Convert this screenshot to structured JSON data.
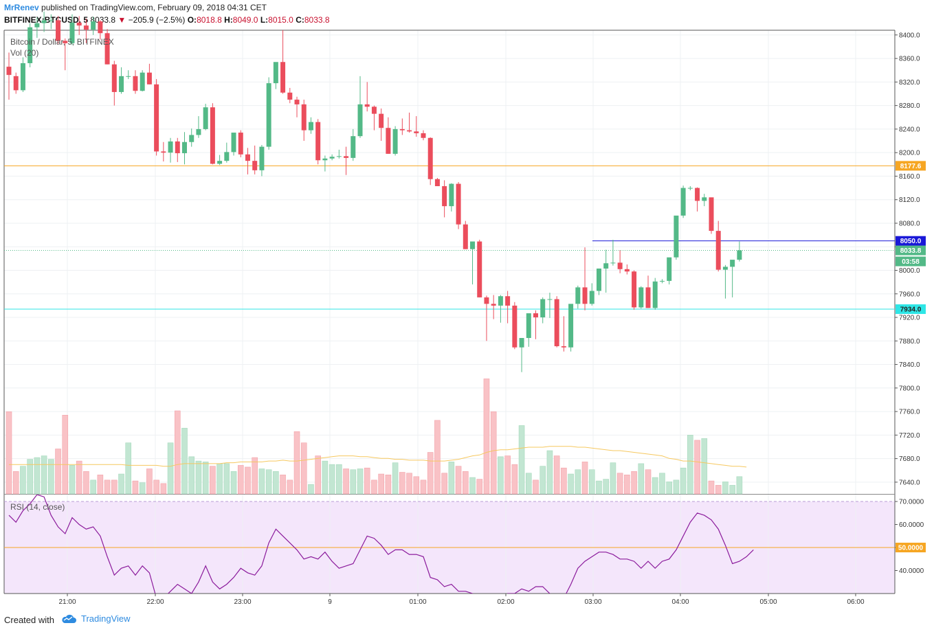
{
  "header": {
    "author": "MrRenev",
    "published_text": "published on TradingView.com, February 09, 2018 04:31 CET",
    "symbol": "BITFINEX:BTCUSD, 5",
    "last": "8033.8",
    "change": "−205.9 (−2.5%)",
    "o_label": "O:",
    "o_value": "8018.8",
    "h_label": "H:",
    "h_value": "8049.0",
    "l_label": "L:",
    "l_value": "8015.0",
    "c_label": "C:",
    "c_value": "8033.8"
  },
  "footer": {
    "created_with": "Created with",
    "brand": "TradingView"
  },
  "colors": {
    "up": "#53b987",
    "down": "#eb4d5c",
    "vol_up": "#c2e6d2",
    "vol_down": "#f9c2c6",
    "level_orange": "#f6a623",
    "level_blue": "#1a18d8",
    "level_cyan": "#2ee6e6",
    "rsi_line": "#8b1b9c",
    "rsi_fill": "#f4e6fb",
    "vol_ma": "#f6c85f"
  },
  "chart_data": {
    "type": "candlestick",
    "title": "Bitcoin / Dollar, 5, BITFINEX",
    "volume_label": "Vol (20)",
    "rsi_label": "RSI (14, close)",
    "x_ticks": [
      "21:00",
      "22:00",
      "23:00",
      "9",
      "01:00",
      "02:00",
      "03:00",
      "04:00",
      "05:00",
      "06:00"
    ],
    "y_ticks": [
      "8400.0",
      "8360.0",
      "8320.0",
      "8280.0",
      "8240.0",
      "8200.0",
      "8160.0",
      "8120.0",
      "8080.0",
      "8040.0",
      "8000.0",
      "7960.0",
      "7920.0",
      "7880.0",
      "7840.0",
      "7800.0",
      "7760.0",
      "7720.0",
      "7680.0",
      "7640.0"
    ],
    "ylim": [
      7620,
      8408
    ],
    "rsi_ticks": [
      "70.0000",
      "60.0000",
      "50.0000",
      "40.0000"
    ],
    "rsi_ylim": [
      30,
      73
    ],
    "levels": [
      {
        "label": "8177.6",
        "value": 8177.6,
        "color": "#f6a623"
      },
      {
        "label": "8050.0",
        "value": 8050.0,
        "color": "#1a18d8"
      },
      {
        "label": "7934.0",
        "value": 7934.0,
        "color": "#2ee6e6"
      }
    ],
    "last_price_label": "8033.8",
    "countdown_label": "03:58",
    "rsi_level_label": "50.0000",
    "candles": [
      {
        "o": 8346,
        "h": 8370,
        "l": 8290,
        "c": 8332
      },
      {
        "o": 8330,
        "h": 8336,
        "l": 8300,
        "c": 8306
      },
      {
        "o": 8306,
        "h": 8362,
        "l": 8303,
        "c": 8352
      },
      {
        "o": 8352,
        "h": 8420,
        "l": 8345,
        "c": 8413
      },
      {
        "o": 8413,
        "h": 8430,
        "l": 8395,
        "c": 8420
      },
      {
        "o": 8420,
        "h": 8440,
        "l": 8405,
        "c": 8425
      },
      {
        "o": 8425,
        "h": 8435,
        "l": 8410,
        "c": 8425
      },
      {
        "o": 8425,
        "h": 8432,
        "l": 8385,
        "c": 8390
      },
      {
        "o": 8390,
        "h": 8394,
        "l": 8340,
        "c": 8386
      },
      {
        "o": 8386,
        "h": 8435,
        "l": 8383,
        "c": 8421
      },
      {
        "o": 8421,
        "h": 8432,
        "l": 8400,
        "c": 8416
      },
      {
        "o": 8416,
        "h": 8428,
        "l": 8386,
        "c": 8409
      },
      {
        "o": 8409,
        "h": 8431,
        "l": 8400,
        "c": 8423
      },
      {
        "o": 8423,
        "h": 8425,
        "l": 8392,
        "c": 8403
      },
      {
        "o": 8403,
        "h": 8410,
        "l": 8350,
        "c": 8350
      },
      {
        "o": 8350,
        "h": 8356,
        "l": 8280,
        "c": 8303
      },
      {
        "o": 8303,
        "h": 8345,
        "l": 8300,
        "c": 8330
      },
      {
        "o": 8330,
        "h": 8340,
        "l": 8325,
        "c": 8330
      },
      {
        "o": 8330,
        "h": 8340,
        "l": 8300,
        "c": 8305
      },
      {
        "o": 8305,
        "h": 8340,
        "l": 8304,
        "c": 8336
      },
      {
        "o": 8336,
        "h": 8351,
        "l": 8316,
        "c": 8316
      },
      {
        "o": 8316,
        "h": 8325,
        "l": 8195,
        "c": 8202
      },
      {
        "o": 8202,
        "h": 8218,
        "l": 8185,
        "c": 8200
      },
      {
        "o": 8200,
        "h": 8225,
        "l": 8183,
        "c": 8219
      },
      {
        "o": 8219,
        "h": 8225,
        "l": 8184,
        "c": 8199
      },
      {
        "o": 8199,
        "h": 8235,
        "l": 8180,
        "c": 8218
      },
      {
        "o": 8218,
        "h": 8241,
        "l": 8210,
        "c": 8230
      },
      {
        "o": 8230,
        "h": 8262,
        "l": 8225,
        "c": 8240
      },
      {
        "o": 8240,
        "h": 8283,
        "l": 8238,
        "c": 8277
      },
      {
        "o": 8277,
        "h": 8284,
        "l": 8180,
        "c": 8181
      },
      {
        "o": 8181,
        "h": 8196,
        "l": 8179,
        "c": 8186
      },
      {
        "o": 8186,
        "h": 8217,
        "l": 8183,
        "c": 8201
      },
      {
        "o": 8201,
        "h": 8230,
        "l": 8195,
        "c": 8234
      },
      {
        "o": 8234,
        "h": 8238,
        "l": 8192,
        "c": 8197
      },
      {
        "o": 8197,
        "h": 8208,
        "l": 8163,
        "c": 8186
      },
      {
        "o": 8186,
        "h": 8212,
        "l": 8163,
        "c": 8170
      },
      {
        "o": 8170,
        "h": 8213,
        "l": 8160,
        "c": 8210
      },
      {
        "o": 8210,
        "h": 8328,
        "l": 8205,
        "c": 8318
      },
      {
        "o": 8318,
        "h": 8352,
        "l": 8308,
        "c": 8354
      },
      {
        "o": 8354,
        "h": 8408,
        "l": 8300,
        "c": 8302
      },
      {
        "o": 8302,
        "h": 8310,
        "l": 8284,
        "c": 8290
      },
      {
        "o": 8290,
        "h": 8295,
        "l": 8260,
        "c": 8282
      },
      {
        "o": 8282,
        "h": 8290,
        "l": 8220,
        "c": 8238
      },
      {
        "o": 8238,
        "h": 8260,
        "l": 8232,
        "c": 8252
      },
      {
        "o": 8252,
        "h": 8257,
        "l": 8180,
        "c": 8187
      },
      {
        "o": 8187,
        "h": 8195,
        "l": 8168,
        "c": 8190
      },
      {
        "o": 8190,
        "h": 8197,
        "l": 8187,
        "c": 8193
      },
      {
        "o": 8193,
        "h": 8205,
        "l": 8190,
        "c": 8194
      },
      {
        "o": 8194,
        "h": 8210,
        "l": 8162,
        "c": 8191
      },
      {
        "o": 8191,
        "h": 8240,
        "l": 8186,
        "c": 8228
      },
      {
        "o": 8228,
        "h": 8330,
        "l": 8225,
        "c": 8282
      },
      {
        "o": 8282,
        "h": 8320,
        "l": 8270,
        "c": 8278
      },
      {
        "o": 8278,
        "h": 8280,
        "l": 8238,
        "c": 8266
      },
      {
        "o": 8266,
        "h": 8275,
        "l": 8220,
        "c": 8242
      },
      {
        "o": 8242,
        "h": 8260,
        "l": 8198,
        "c": 8198
      },
      {
        "o": 8198,
        "h": 8245,
        "l": 8195,
        "c": 8240
      },
      {
        "o": 8240,
        "h": 8258,
        "l": 8230,
        "c": 8238
      },
      {
        "o": 8238,
        "h": 8268,
        "l": 8234,
        "c": 8236
      },
      {
        "o": 8236,
        "h": 8262,
        "l": 8227,
        "c": 8233
      },
      {
        "o": 8233,
        "h": 8238,
        "l": 8221,
        "c": 8225
      },
      {
        "o": 8225,
        "h": 8226,
        "l": 8145,
        "c": 8155
      },
      {
        "o": 8155,
        "h": 8157,
        "l": 8143,
        "c": 8143
      },
      {
        "o": 8143,
        "h": 8153,
        "l": 8090,
        "c": 8109
      },
      {
        "o": 8109,
        "h": 8148,
        "l": 8100,
        "c": 8147
      },
      {
        "o": 8147,
        "h": 8150,
        "l": 8070,
        "c": 8078
      },
      {
        "o": 8078,
        "h": 8084,
        "l": 8036,
        "c": 8036
      },
      {
        "o": 8036,
        "h": 8048,
        "l": 7976,
        "c": 8049
      },
      {
        "o": 8049,
        "h": 8052,
        "l": 7954,
        "c": 7954
      },
      {
        "o": 7954,
        "h": 7957,
        "l": 7880,
        "c": 7943
      },
      {
        "o": 7943,
        "h": 7958,
        "l": 7917,
        "c": 7940
      },
      {
        "o": 7940,
        "h": 7958,
        "l": 7911,
        "c": 7956
      },
      {
        "o": 7956,
        "h": 7965,
        "l": 7910,
        "c": 7940
      },
      {
        "o": 7940,
        "h": 7946,
        "l": 7866,
        "c": 7869
      },
      {
        "o": 7869,
        "h": 7883,
        "l": 7827,
        "c": 7885
      },
      {
        "o": 7885,
        "h": 7923,
        "l": 7870,
        "c": 7927
      },
      {
        "o": 7927,
        "h": 7932,
        "l": 7883,
        "c": 7920
      },
      {
        "o": 7920,
        "h": 7954,
        "l": 7910,
        "c": 7951
      },
      {
        "o": 7951,
        "h": 7962,
        "l": 7919,
        "c": 7951
      },
      {
        "o": 7951,
        "h": 7956,
        "l": 7869,
        "c": 7871
      },
      {
        "o": 7871,
        "h": 7922,
        "l": 7862,
        "c": 7869
      },
      {
        "o": 7869,
        "h": 7941,
        "l": 7862,
        "c": 7943
      },
      {
        "o": 7943,
        "h": 7974,
        "l": 7935,
        "c": 7971
      },
      {
        "o": 7971,
        "h": 8039,
        "l": 7932,
        "c": 7943
      },
      {
        "o": 7943,
        "h": 7978,
        "l": 7940,
        "c": 7965
      },
      {
        "o": 7965,
        "h": 8003,
        "l": 7958,
        "c": 8003
      },
      {
        "o": 8003,
        "h": 8035,
        "l": 7962,
        "c": 8012
      },
      {
        "o": 8012,
        "h": 8052,
        "l": 8008,
        "c": 8013
      },
      {
        "o": 8013,
        "h": 8034,
        "l": 7995,
        "c": 8002
      },
      {
        "o": 8002,
        "h": 8010,
        "l": 7993,
        "c": 7998
      },
      {
        "o": 7998,
        "h": 8000,
        "l": 7933,
        "c": 7937
      },
      {
        "o": 7937,
        "h": 7973,
        "l": 7935,
        "c": 7971
      },
      {
        "o": 7971,
        "h": 7991,
        "l": 7936,
        "c": 7936
      },
      {
        "o": 7936,
        "h": 7987,
        "l": 7933,
        "c": 7981
      },
      {
        "o": 7981,
        "h": 7985,
        "l": 7978,
        "c": 7982
      },
      {
        "o": 7982,
        "h": 8018,
        "l": 7976,
        "c": 8022
      },
      {
        "o": 8022,
        "h": 8092,
        "l": 8018,
        "c": 8093
      },
      {
        "o": 8093,
        "h": 8144,
        "l": 8089,
        "c": 8140
      },
      {
        "o": 8140,
        "h": 8143,
        "l": 8136,
        "c": 8140
      },
      {
        "o": 8140,
        "h": 8141,
        "l": 8100,
        "c": 8118
      },
      {
        "o": 8118,
        "h": 8130,
        "l": 8109,
        "c": 8124
      },
      {
        "o": 8124,
        "h": 8118,
        "l": 8062,
        "c": 8067
      },
      {
        "o": 8067,
        "h": 8084,
        "l": 7998,
        "c": 8001
      },
      {
        "o": 8001,
        "h": 8009,
        "l": 7952,
        "c": 8006
      },
      {
        "o": 8006,
        "h": 8017,
        "l": 7954,
        "c": 8018
      },
      {
        "o": 8018,
        "h": 8049,
        "l": 8015,
        "c": 8034
      }
    ],
    "volume_series": [
      {
        "name": "Vol (20)",
        "values": [
          95,
          26,
          32,
          40,
          42,
          44,
          40,
          52,
          91,
          33,
          38,
          26,
          16,
          22,
          16,
          16,
          23,
          59,
          15,
          13,
          29,
          16,
          12,
          59,
          96,
          76,
          43,
          38,
          37,
          32,
          35,
          35,
          26,
          33,
          31,
          42,
          29,
          28,
          26,
          22,
          16,
          72,
          59,
          11,
          44,
          38,
          34,
          34,
          29,
          28,
          29,
          30,
          16,
          23,
          22,
          36,
          25,
          24,
          20,
          16,
          48,
          85,
          24,
          37,
          32,
          26,
          19,
          17,
          133,
          95,
          43,
          44,
          34,
          79,
          24,
          16,
          32,
          50,
          44,
          30,
          23,
          28,
          37,
          28,
          15,
          17,
          36,
          24,
          22,
          26,
          35,
          28,
          19,
          24,
          14,
          16,
          30,
          68,
          62,
          64,
          15,
          10,
          14,
          10,
          20,
          16,
          0
        ]
      },
      {
        "name": "MA",
        "values": [
          34,
          34,
          34,
          34,
          34,
          34,
          34,
          34,
          34,
          34,
          34,
          34,
          34,
          34,
          34,
          34,
          34,
          33,
          33,
          33,
          33,
          33,
          32,
          32,
          34,
          35,
          35,
          35,
          35,
          35,
          35,
          36,
          36,
          37,
          37,
          37,
          37,
          38,
          38,
          39,
          38,
          38,
          39,
          40,
          41,
          42,
          43,
          44,
          44,
          44,
          43,
          43,
          42,
          41,
          41,
          40,
          40,
          39,
          39,
          39,
          38,
          38,
          38,
          39,
          40,
          42,
          44,
          45,
          48,
          50,
          51,
          51,
          52,
          53,
          54,
          54,
          54,
          55,
          55,
          55,
          55,
          54,
          54,
          53,
          52,
          51,
          50,
          50,
          49,
          48,
          47,
          46,
          45,
          44,
          41,
          40,
          38,
          38,
          37,
          36,
          35,
          34,
          33,
          32,
          32,
          31,
          0
        ]
      }
    ],
    "rsi": [
      64,
      61,
      66,
      69,
      73,
      72,
      64,
      59,
      56,
      63,
      60,
      58,
      59,
      55,
      46,
      38,
      41,
      42,
      38,
      42,
      39,
      28,
      28,
      31,
      34,
      32,
      30,
      35,
      42,
      35,
      32,
      34,
      37,
      41,
      39,
      38,
      42,
      52,
      58,
      55,
      52,
      49,
      45,
      46,
      45,
      48,
      44,
      41,
      42,
      43,
      49,
      55,
      54,
      51,
      47,
      49,
      49,
      47,
      47,
      46,
      37,
      36,
      33,
      34,
      31,
      31,
      30,
      28,
      28,
      27,
      27,
      30,
      30,
      32,
      31,
      33,
      33,
      30,
      27,
      28,
      34,
      41,
      44,
      46,
      48,
      48,
      47,
      45,
      45,
      44,
      41,
      44,
      41,
      44,
      45,
      49,
      55,
      61,
      65,
      64,
      62,
      58,
      51,
      43,
      44,
      46,
      49
    ]
  }
}
